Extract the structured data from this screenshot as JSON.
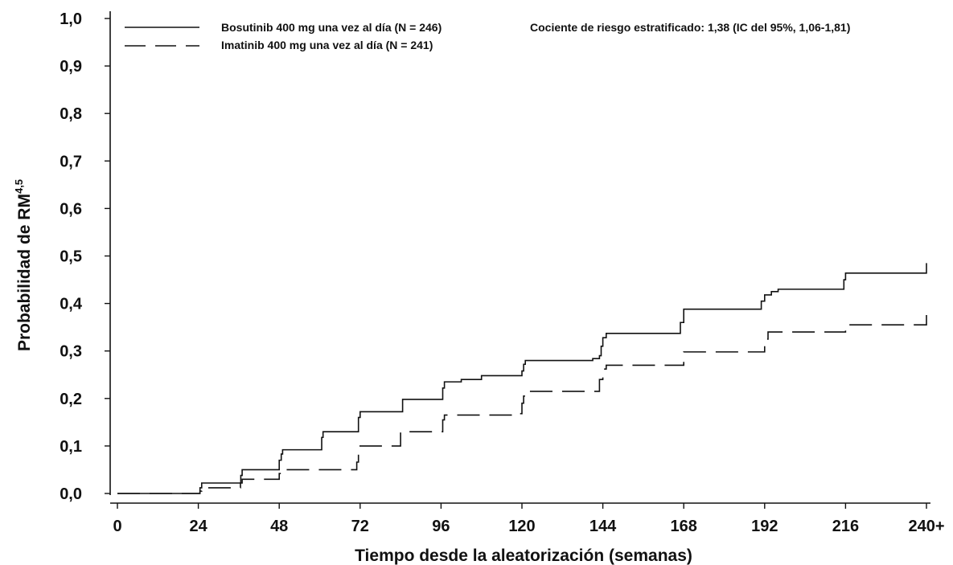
{
  "chart_data": {
    "type": "line",
    "title": "",
    "ylabel": "Probabilidad de RM",
    "ylabel_superscript": "4,5",
    "xlabel": "Tiempo desde la aleatorización (semanas)",
    "xlim": [
      0,
      240
    ],
    "ylim": [
      0,
      1.0
    ],
    "x_ticks": [
      0,
      24,
      48,
      72,
      96,
      120,
      144,
      168,
      192,
      216,
      240
    ],
    "x_tick_labels": [
      "0",
      "24",
      "48",
      "72",
      "96",
      "120",
      "144",
      "168",
      "192",
      "216",
      "240+"
    ],
    "y_ticks": [
      0,
      0.1,
      0.2,
      0.3,
      0.4,
      0.5,
      0.6,
      0.7,
      0.8,
      0.9,
      1.0
    ],
    "y_tick_labels": [
      "0,0",
      "0,1",
      "0,2",
      "0,3",
      "0,4",
      "0,5",
      "0,6",
      "0,7",
      "0,8",
      "0,9",
      "1,0"
    ],
    "grid": false,
    "legend_position": "top-left",
    "annotation": "Cociente de riesgo estratificado: 1,38 (IC del 95%, 1,06-1,81)",
    "series": [
      {
        "name": "Bosutinib 400 mg una vez al día (N = 246)",
        "style": "solid",
        "color": "#111111",
        "x": [
          0,
          24,
          24.5,
          25,
          36,
          36.6,
          37,
          47.5,
          48,
          48.6,
          49,
          60,
          60.6,
          61,
          71,
          71.5,
          72,
          84,
          84.6,
          96,
          96.5,
          97,
          102,
          108,
          120,
          120.5,
          121,
          140,
          141,
          143,
          143.5,
          144,
          145,
          166,
          167,
          168,
          190,
          191,
          192,
          194,
          196,
          215,
          215.5,
          216,
          240,
          240
        ],
        "y": [
          0,
          0,
          0.012,
          0.022,
          0.022,
          0.038,
          0.05,
          0.05,
          0.07,
          0.083,
          0.092,
          0.092,
          0.118,
          0.13,
          0.13,
          0.16,
          0.172,
          0.172,
          0.198,
          0.198,
          0.222,
          0.235,
          0.24,
          0.248,
          0.258,
          0.272,
          0.28,
          0.28,
          0.284,
          0.29,
          0.31,
          0.328,
          0.337,
          0.337,
          0.36,
          0.388,
          0.388,
          0.405,
          0.418,
          0.425,
          0.43,
          0.43,
          0.45,
          0.464,
          0.464,
          0.485
        ]
      },
      {
        "name": "Imatinib 400 mg una vez al día (N = 241)",
        "style": "dashed",
        "color": "#111111",
        "x": [
          0,
          24,
          24.5,
          25,
          36,
          36.5,
          37,
          47.5,
          48,
          48.5,
          60,
          71,
          71.5,
          72,
          84,
          96,
          96.5,
          97,
          119,
          120,
          120.5,
          121,
          142,
          143,
          144,
          145,
          167,
          168,
          191,
          192,
          193,
          215,
          216,
          240,
          240
        ],
        "y": [
          0,
          0,
          0.005,
          0.012,
          0.012,
          0.022,
          0.03,
          0.03,
          0.042,
          0.05,
          0.05,
          0.066,
          0.085,
          0.1,
          0.13,
          0.13,
          0.155,
          0.165,
          0.168,
          0.19,
          0.205,
          0.215,
          0.215,
          0.24,
          0.262,
          0.27,
          0.27,
          0.298,
          0.298,
          0.325,
          0.34,
          0.34,
          0.355,
          0.36,
          0.385
        ]
      }
    ]
  }
}
